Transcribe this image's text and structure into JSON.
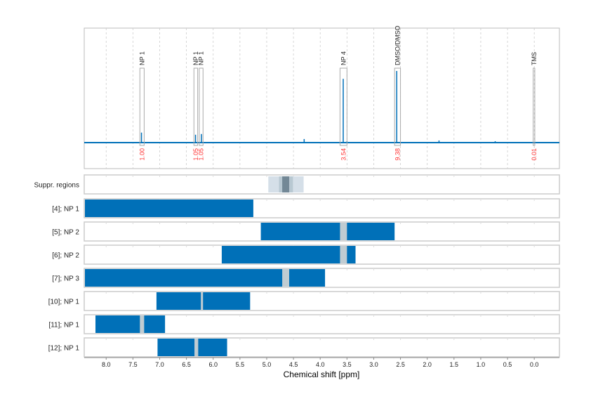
{
  "chart_data": {
    "type": "nmr-spectrum-with-range-bars",
    "xlabel": "Chemical shift [ppm]",
    "xlim": [
      8.41,
      -0.47
    ],
    "x_reversed": true,
    "x_ticks": [
      8.0,
      7.5,
      7.0,
      6.5,
      6.0,
      5.5,
      5.0,
      4.5,
      4.0,
      3.5,
      3.0,
      2.5,
      2.0,
      1.5,
      1.0,
      0.5,
      0.0
    ],
    "x_tick_labels": [
      "8.0",
      "7.5",
      "7.0",
      "6.5",
      "6.0",
      "5.5",
      "5.0",
      "4.5",
      "4.0",
      "3.5",
      "3.0",
      "2.5",
      "2.0",
      "1.5",
      "1.0",
      "0.5",
      "0.0"
    ],
    "grid": true,
    "spectrum": {
      "color": "#0070b8",
      "relative_intensity_peaks": [
        {
          "ppm": 7.34,
          "intensity": 0.14
        },
        {
          "ppm": 6.33,
          "intensity": 0.11
        },
        {
          "ppm": 6.22,
          "intensity": 0.12
        },
        {
          "ppm": 4.3,
          "intensity": 0.05
        },
        {
          "ppm": 3.57,
          "intensity": 0.89
        },
        {
          "ppm": 3.5,
          "intensity": 0.02
        },
        {
          "ppm": 2.57,
          "intensity": 1.0
        },
        {
          "ppm": 1.78,
          "intensity": 0.03
        },
        {
          "ppm": 0.73,
          "intensity": 0.02
        }
      ]
    },
    "annotations": [
      {
        "label": "NP 1",
        "from": 7.37,
        "to": 7.29,
        "integral": "1.00"
      },
      {
        "label": "NP 1",
        "from": 6.36,
        "to": 6.29,
        "integral": "1.05"
      },
      {
        "label": "NP 1",
        "from": 6.26,
        "to": 6.19,
        "integral": "1.05"
      },
      {
        "label": "NP 4",
        "from": 3.63,
        "to": 3.5,
        "integral": "3.54"
      },
      {
        "label": "DMSO/DMSO",
        "from": 2.61,
        "to": 2.5,
        "integral": "9.38"
      },
      {
        "label": "TMS",
        "from": 0.02,
        "to": -0.01,
        "integral": "0.01"
      }
    ],
    "annotation_color": "#aaaaaa",
    "integral_color": "#ff3333",
    "suppressed_regions": {
      "label": "Suppr. regions",
      "bands": [
        {
          "from": 4.97,
          "to": 4.31,
          "color": "#d5dfe8"
        },
        {
          "from": 4.77,
          "to": 4.51,
          "color": "#b8c8d2"
        },
        {
          "from": 4.71,
          "to": 4.58,
          "color": "#738896"
        }
      ]
    },
    "rows": [
      {
        "label": "[4]; NP 1",
        "from": 8.41,
        "to": 5.25,
        "gaps": []
      },
      {
        "label": "[5]; NP 2",
        "from": 5.11,
        "to": 2.61,
        "gaps": [
          [
            3.63,
            3.5
          ]
        ]
      },
      {
        "label": "[6]; NP 2",
        "from": 5.84,
        "to": 3.34,
        "gaps": [
          [
            3.63,
            3.5
          ]
        ]
      },
      {
        "label": "[7]; NP 3",
        "from": 8.41,
        "to": 3.91,
        "gaps": [
          [
            4.71,
            4.58
          ]
        ]
      },
      {
        "label": "[10]; NP 1",
        "from": 7.06,
        "to": 5.31,
        "gaps": [
          [
            6.23,
            6.19
          ]
        ]
      },
      {
        "label": "[11]; NP 1",
        "from": 8.2,
        "to": 6.9,
        "gaps": [
          [
            7.37,
            7.29
          ]
        ]
      },
      {
        "label": "[12]; NP 1",
        "from": 7.04,
        "to": 5.74,
        "gaps": [
          [
            6.35,
            6.28
          ]
        ]
      }
    ],
    "bar_color": "#0070b8",
    "gap_color": "#c0ccd2"
  }
}
